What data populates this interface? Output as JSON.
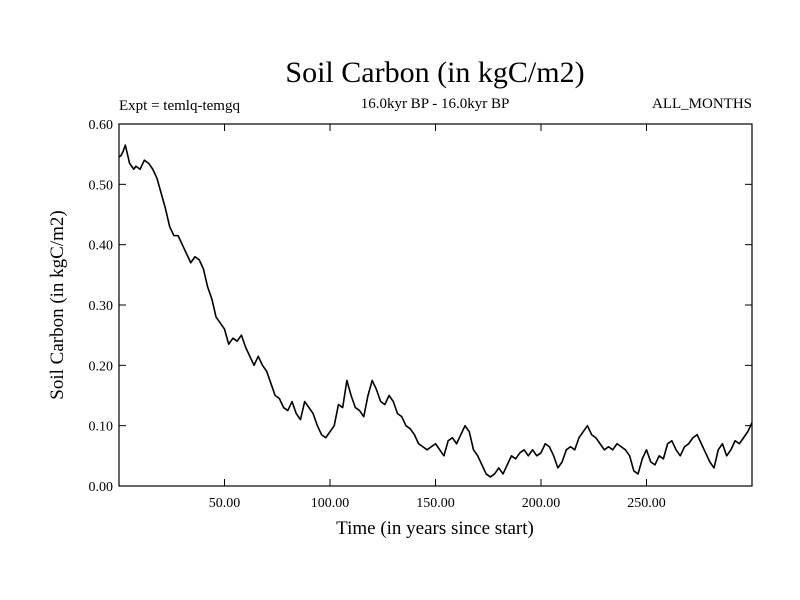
{
  "chart_data": {
    "type": "line",
    "title": "Soil Carbon (in kgC/m2)",
    "subtitle": "16.0kyr BP - 16.0kyr BP",
    "experiment_label": "Expt = temlq-temgq",
    "season_label": "ALL_MONTHS",
    "xlabel": "Time (in years since start)",
    "ylabel": "Soil Carbon (in kgC/m2)",
    "xlim": [
      0,
      300
    ],
    "ylim": [
      0.0,
      0.6
    ],
    "x_ticks": [
      50,
      100,
      150,
      200,
      250
    ],
    "x_tick_labels": [
      "50.00",
      "100.00",
      "150.00",
      "200.00",
      "250.00"
    ],
    "y_ticks": [
      0.0,
      0.1,
      0.2,
      0.3,
      0.4,
      0.5,
      0.6
    ],
    "y_tick_labels": [
      "0.00",
      "0.10",
      "0.20",
      "0.30",
      "0.40",
      "0.50",
      "0.60"
    ],
    "grid": false,
    "series": [
      {
        "name": "Soil Carbon",
        "color": "#000000",
        "x": [
          0,
          1,
          2,
          3,
          4,
          5,
          6,
          7,
          8,
          10,
          12,
          14,
          16,
          18,
          20,
          22,
          24,
          26,
          28,
          30,
          32,
          34,
          36,
          38,
          40,
          42,
          44,
          46,
          48,
          50,
          52,
          54,
          56,
          58,
          60,
          62,
          64,
          66,
          68,
          70,
          72,
          74,
          76,
          78,
          80,
          82,
          84,
          86,
          88,
          90,
          92,
          94,
          96,
          98,
          100,
          102,
          104,
          106,
          108,
          110,
          112,
          114,
          116,
          118,
          120,
          122,
          124,
          126,
          128,
          130,
          132,
          134,
          136,
          138,
          140,
          142,
          144,
          146,
          148,
          150,
          152,
          154,
          156,
          158,
          160,
          162,
          164,
          166,
          168,
          170,
          172,
          174,
          176,
          178,
          180,
          182,
          184,
          186,
          188,
          190,
          192,
          194,
          196,
          198,
          200,
          202,
          204,
          206,
          208,
          210,
          212,
          214,
          216,
          218,
          220,
          222,
          224,
          226,
          228,
          230,
          232,
          234,
          236,
          238,
          240,
          242,
          244,
          246,
          248,
          250,
          252,
          254,
          256,
          258,
          260,
          262,
          264,
          266,
          268,
          270,
          272,
          274,
          276,
          278,
          280,
          282,
          284,
          286,
          288,
          290,
          292,
          294,
          296,
          298,
          300
        ],
        "y": [
          0.545,
          0.548,
          0.555,
          0.565,
          0.55,
          0.535,
          0.53,
          0.525,
          0.53,
          0.525,
          0.54,
          0.535,
          0.525,
          0.51,
          0.485,
          0.46,
          0.43,
          0.415,
          0.415,
          0.4,
          0.385,
          0.37,
          0.38,
          0.375,
          0.36,
          0.33,
          0.31,
          0.28,
          0.27,
          0.26,
          0.235,
          0.245,
          0.24,
          0.25,
          0.23,
          0.215,
          0.2,
          0.215,
          0.2,
          0.19,
          0.17,
          0.15,
          0.145,
          0.13,
          0.125,
          0.14,
          0.12,
          0.11,
          0.14,
          0.13,
          0.12,
          0.1,
          0.085,
          0.08,
          0.09,
          0.1,
          0.135,
          0.13,
          0.175,
          0.15,
          0.13,
          0.125,
          0.115,
          0.15,
          0.175,
          0.16,
          0.14,
          0.135,
          0.15,
          0.14,
          0.12,
          0.115,
          0.1,
          0.095,
          0.085,
          0.07,
          0.065,
          0.06,
          0.065,
          0.07,
          0.06,
          0.05,
          0.075,
          0.08,
          0.07,
          0.085,
          0.1,
          0.09,
          0.06,
          0.05,
          0.035,
          0.02,
          0.015,
          0.02,
          0.03,
          0.02,
          0.035,
          0.05,
          0.045,
          0.055,
          0.06,
          0.05,
          0.06,
          0.05,
          0.055,
          0.07,
          0.065,
          0.05,
          0.03,
          0.04,
          0.06,
          0.065,
          0.06,
          0.08,
          0.09,
          0.1,
          0.085,
          0.08,
          0.07,
          0.06,
          0.065,
          0.06,
          0.07,
          0.065,
          0.06,
          0.05,
          0.025,
          0.02,
          0.045,
          0.06,
          0.04,
          0.035,
          0.05,
          0.045,
          0.07,
          0.075,
          0.06,
          0.05,
          0.065,
          0.07,
          0.08,
          0.085,
          0.07,
          0.055,
          0.04,
          0.03,
          0.06,
          0.07,
          0.05,
          0.06,
          0.075,
          0.07,
          0.08,
          0.09,
          0.105
        ]
      }
    ]
  }
}
